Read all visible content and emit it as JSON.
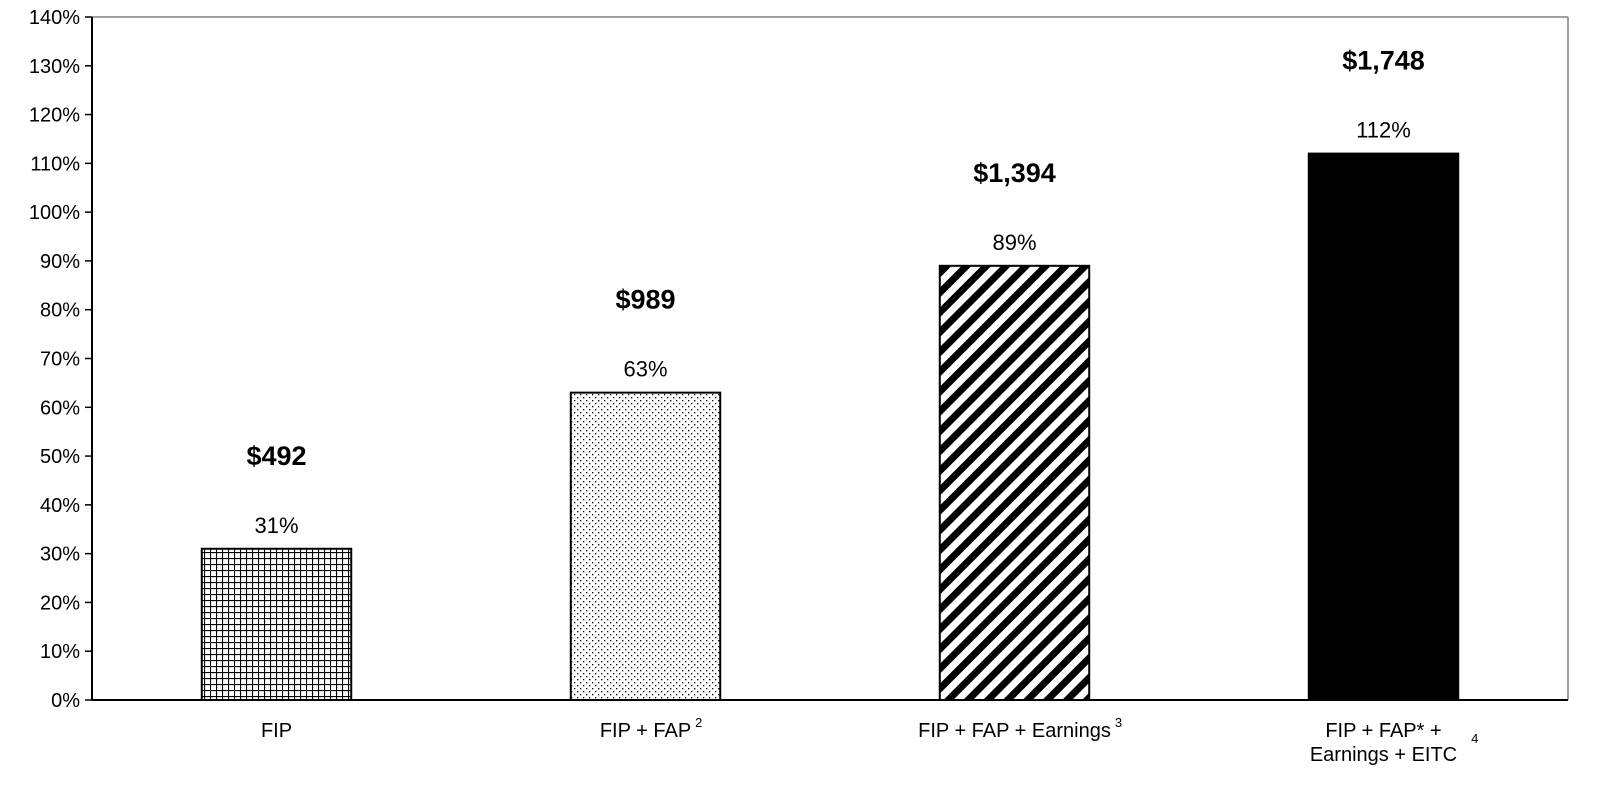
{
  "chart_data": {
    "type": "bar",
    "title": "",
    "xlabel": "",
    "ylabel": "",
    "ylim": [
      0,
      140
    ],
    "y_ticks": [
      "0%",
      "10%",
      "20%",
      "30%",
      "40%",
      "50%",
      "60%",
      "70%",
      "80%",
      "90%",
      "100%",
      "110%",
      "120%",
      "130%",
      "140%"
    ],
    "grid": false,
    "categories": [
      {
        "lines": [
          "FIP"
        ],
        "footnote": ""
      },
      {
        "lines": [
          "FIP + FAP"
        ],
        "footnote": "2"
      },
      {
        "lines": [
          "FIP + FAP + Earnings"
        ],
        "footnote": "3"
      },
      {
        "lines": [
          "FIP + FAP* +",
          "Earnings + EITC"
        ],
        "footnote": "4"
      }
    ],
    "values": [
      31,
      63,
      89,
      112
    ],
    "value_labels": [
      "31%",
      "63%",
      "89%",
      "112%"
    ],
    "dollar_labels": [
      "$492",
      "$989",
      "$1,394",
      "$1,748"
    ],
    "bar_fills": [
      "crosshatch",
      "dots",
      "diagonal-stripes",
      "solid-black"
    ],
    "colors": {
      "bar_stroke": "#000000",
      "axis": "#000000",
      "frame": "#808080",
      "solid": "#000000"
    }
  }
}
